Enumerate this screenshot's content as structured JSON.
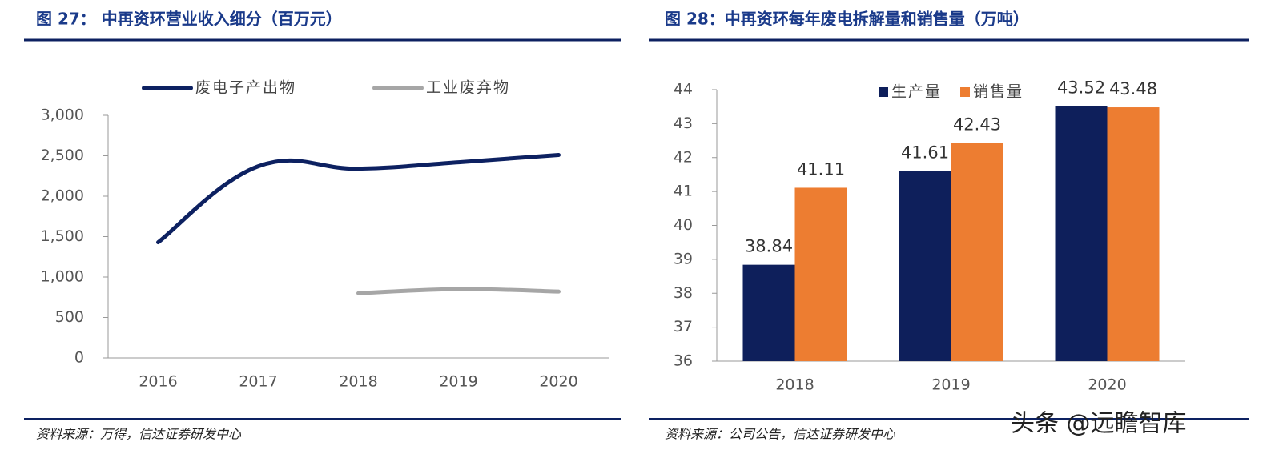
{
  "chart_data": [
    {
      "type": "line",
      "title": "图 27：  中再资环营业收入细分（百万元）",
      "categories": [
        "2016",
        "2017",
        "2018",
        "2019",
        "2020"
      ],
      "series": [
        {
          "name": "废电子产出物",
          "color": "#0d2161",
          "values": [
            1430,
            2370,
            2340,
            2420,
            2510
          ]
        },
        {
          "name": "工业废弃物",
          "color": "#a6a6a6",
          "values": [
            null,
            null,
            800,
            850,
            820
          ]
        }
      ],
      "ylim": [
        0,
        3000
      ],
      "yticks": [
        0,
        500,
        {
          "value": 1000,
          "label": "1,000"
        },
        {
          "value": 1500,
          "label": "1,500"
        },
        {
          "value": 2000,
          "label": "2,000"
        },
        {
          "value": 2500,
          "label": "2,500"
        },
        {
          "value": 3000,
          "label": "3,000"
        }
      ],
      "source": "资料来源：万得，信达证券研发中心"
    },
    {
      "type": "bar",
      "title": "图 28：中再资环每年废电拆解量和销售量（万吨）",
      "categories": [
        "2018",
        "2019",
        "2020"
      ],
      "series": [
        {
          "name": "生产量",
          "color": "#0e1f5b",
          "values": [
            38.84,
            41.61,
            43.52
          ]
        },
        {
          "name": "销售量",
          "color": "#ed7d31",
          "values": [
            41.11,
            42.43,
            43.48
          ]
        }
      ],
      "ylim": [
        36,
        44
      ],
      "yticks": [
        36,
        37,
        38,
        39,
        40,
        41,
        42,
        43,
        44
      ],
      "source": "资料来源：公司公告，信达证券研发中心"
    }
  ],
  "watermark": "头条 @远瞻智库"
}
